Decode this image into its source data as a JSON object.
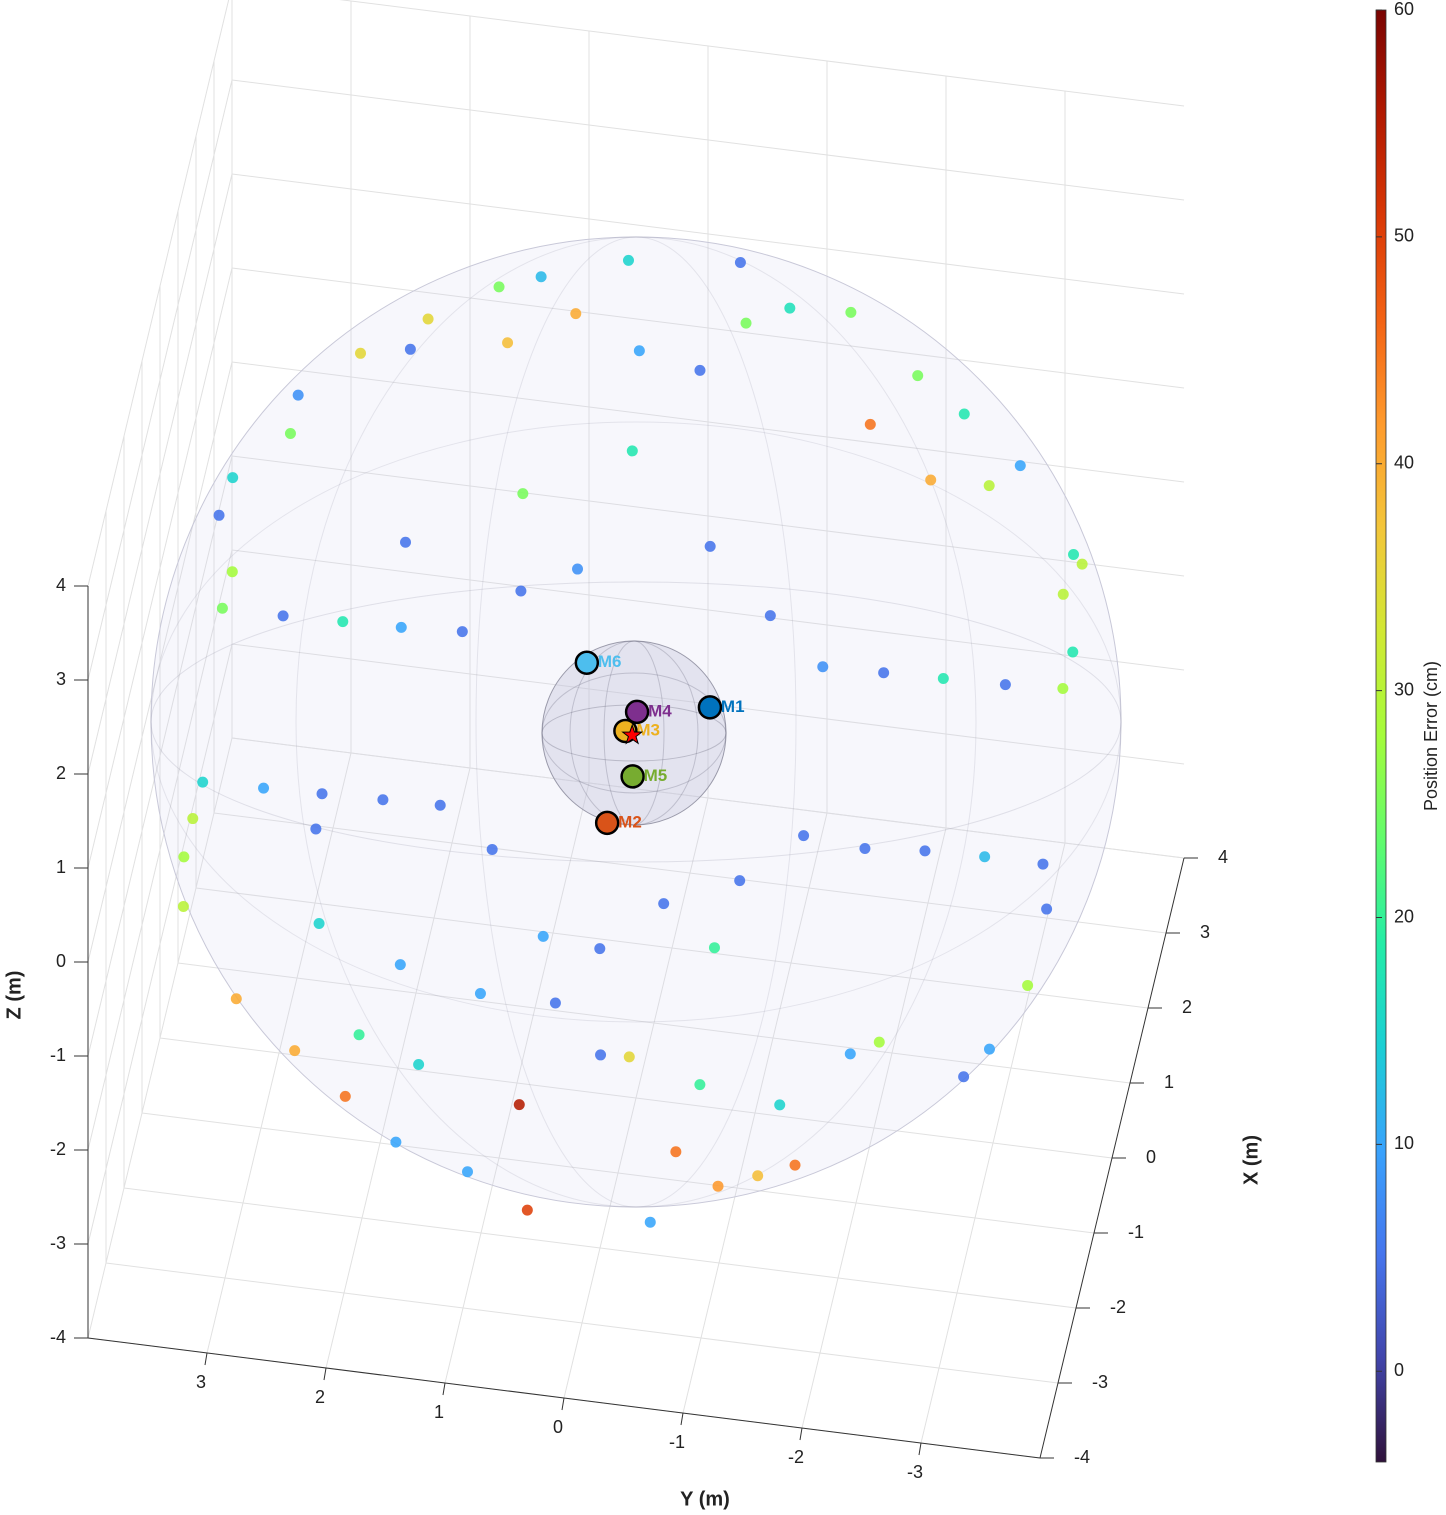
{
  "chart_data": {
    "type": "scatter3d",
    "xlabel": "X (m)",
    "ylabel": "Y (m)",
    "zlabel": "Z (m)",
    "xlim": [
      -4,
      4
    ],
    "ylim": [
      -4,
      4
    ],
    "zlim": [
      -4,
      4
    ],
    "xticks": [
      -4,
      -3,
      -2,
      -1,
      0,
      1,
      2,
      3,
      4
    ],
    "yticks": [
      -3,
      -2,
      -1,
      0,
      1,
      2,
      3
    ],
    "zticks": [
      -4,
      -3,
      -2,
      -1,
      0,
      1,
      2,
      3,
      4
    ],
    "grid": true,
    "colorbar": {
      "label": "Position Error (cm)",
      "clim": [
        -4,
        60
      ],
      "ticks": [
        0,
        10,
        20,
        30,
        40,
        50,
        60
      ],
      "colormap": [
        "#30123b",
        "#4145ab",
        "#4675ed",
        "#39a2fc",
        "#1bcfd4",
        "#24eca6",
        "#61fc6c",
        "#a4fc3b",
        "#d1e834",
        "#f3c63a",
        "#fe9b2d",
        "#f36315",
        "#d93806",
        "#b11901",
        "#7a0402"
      ]
    },
    "points": {
      "x": [
        2.69,
        2.76,
        2.53,
        2.44,
        2.34,
        2.2,
        2.12,
        2.01,
        1.95,
        1.66,
        1.43,
        1.13,
        0.9,
        0.58,
        0.36,
        0.36,
        0.37,
        0.38,
        0.4,
        0.68,
        0.85,
        2.17,
        2.1,
        2.41,
        2.53,
        2.55,
        1.91,
        1.63,
        1.64,
        1.78,
        1.3,
        1.25,
        1.06,
        0.73,
        0.51,
        0.49,
        0.48,
        0.47,
        0.46,
        0.72,
        1.08,
        1.58,
        1.25,
        0.88,
        2.04,
        2.23,
        -0.67,
        -0.66,
        -0.65,
        -0.64,
        -0.63,
        -0.89,
        -1.12,
        -1.41,
        -1.91,
        -2.17,
        -2.4,
        -2.63,
        -2.75,
        -2.93,
        -2.32,
        -1.96,
        -2.91,
        -2.48,
        -2.65,
        -2.56,
        -2.47,
        -1.69,
        -1.83,
        -0.53,
        -0.79,
        -1.25,
        -1.65,
        -0.53,
        -0.54,
        -0.57,
        -0.54,
        -0.85,
        -1.04,
        -1.26,
        -1.35,
        -1.32,
        -0.85,
        -0.86,
        -1.7,
        -1.7,
        -1.59,
        -1.41,
        -1.78,
        -2.13,
        -2.07,
        -1.97,
        -2.16,
        -2.03
      ],
      "y": [
        0.47,
        -0.46,
        1.18,
        1.52,
        0.86,
        2.08,
        1.4,
        2.2,
        2.61,
        3.09,
        3.12,
        3.56,
        3.64,
        3.48,
        3.53,
        3.02,
        2.52,
        2.03,
        1.52,
        1.07,
        0.62,
        0.3,
        -0.22,
        -0.56,
        -0.91,
        -1.42,
        -1.68,
        -2.23,
        -2.72,
        -2.96,
        -3.48,
        -3.56,
        -3.43,
        -3.56,
        -3.51,
        -3.03,
        -2.51,
        -2.01,
        -1.5,
        -1.02,
        -0.46,
        0.27,
        1.14,
        2.07,
        -2.45,
        -2.03,
        3.54,
        3.03,
        2.54,
        2.03,
        1.55,
        3.59,
        3.63,
        3.59,
        3.07,
        2.54,
        2.08,
        1.62,
        1.0,
        0.47,
        0.63,
        -0.24,
        -0.56,
        -0.71,
        -1.09,
        -1.41,
        -1.71,
        -2.3,
        -3.03,
        -3.5,
        -3.57,
        -3.48,
        -3.22,
        -3.01,
        -2.51,
        -2.01,
        -1.49,
        -1.0,
        -0.39,
        -0.85,
        0.1,
        0.58,
        1.08,
        2.56,
        0.42,
        1.05,
        1.74,
        2.45,
        -2.07,
        -1.53,
        -0.85,
        0,
        1.5,
        2.02
      ],
      "z": [
        2.69,
        2.76,
        2.53,
        2.44,
        2.34,
        2.2,
        2.12,
        2.01,
        1.95,
        1.66,
        1.43,
        1.13,
        0.9,
        0.58,
        0.36,
        0.36,
        0.37,
        0.38,
        0.4,
        0.68,
        0.85,
        2.17,
        2.1,
        2.41,
        2.53,
        2.55,
        1.91,
        1.63,
        1.64,
        1.78,
        1.3,
        1.25,
        1.06,
        0.73,
        0.51,
        0.49,
        0.48,
        0.47,
        0.46,
        0.72,
        1.08,
        1.58,
        1.25,
        0.88,
        2.04,
        2.23,
        -0.67,
        -0.66,
        -0.65,
        -0.64,
        -0.63,
        -0.89,
        -1.12,
        -1.41,
        -1.91,
        -2.17,
        -2.4,
        -2.63,
        -2.75,
        -2.93,
        -2.32,
        -1.96,
        -2.91,
        -2.48,
        -2.65,
        -2.56,
        -2.47,
        -1.69,
        -1.83,
        -0.53,
        -0.79,
        -1.25,
        -1.65,
        -0.53,
        -0.54,
        -0.57,
        -0.54,
        -0.85,
        -1.04,
        -1.26,
        -1.35,
        -1.32,
        -0.85,
        -0.86,
        -1.7,
        -1.7,
        -1.59,
        -1.41,
        -1.78,
        -2.13,
        -2.07,
        -1.97,
        -2.16,
        -2.03
      ],
      "values": [
        15,
        5,
        12,
        25,
        40,
        35,
        38,
        5,
        35,
        8,
        25,
        15,
        5,
        28,
        25,
        5,
        18,
        10,
        5,
        5,
        8,
        10,
        5,
        25,
        17,
        25,
        45,
        40,
        30,
        10,
        18,
        30,
        30,
        18,
        28,
        5,
        18,
        5,
        8,
        5,
        5,
        18,
        25,
        5,
        18,
        25,
        15,
        10,
        5,
        5,
        5,
        30,
        28,
        30,
        40,
        40,
        45,
        10,
        10,
        50,
        55,
        35,
        10,
        45,
        42,
        38,
        45,
        28,
        5,
        5,
        5,
        28,
        10,
        12,
        5,
        5,
        5,
        5,
        5,
        20,
        5,
        10,
        5,
        5,
        5,
        10,
        10,
        15,
        10,
        15,
        20,
        5,
        15,
        20
      ]
    },
    "microphones": {
      "labels": [
        "M1",
        "M2",
        "M3",
        "M4",
        "M5",
        "M6"
      ],
      "colors": [
        "#0072bd",
        "#d95319",
        "#edb120",
        "#7e2f8e",
        "#77ac30",
        "#4dbeee"
      ],
      "x": [
        0.14,
        -0.61,
        -0.06,
        0.06,
        -0.32,
        0.31
      ],
      "y": [
        -0.6,
        0.15,
        0.08,
        0,
        -0.02,
        0.46
      ],
      "z": [
        0.14,
        -0.61,
        -0.06,
        0.06,
        -0.32,
        0.31
      ]
    },
    "source": {
      "marker": "star",
      "color": "#ff0000",
      "x": -0.08,
      "y": 0.02,
      "z": -0.08
    }
  }
}
